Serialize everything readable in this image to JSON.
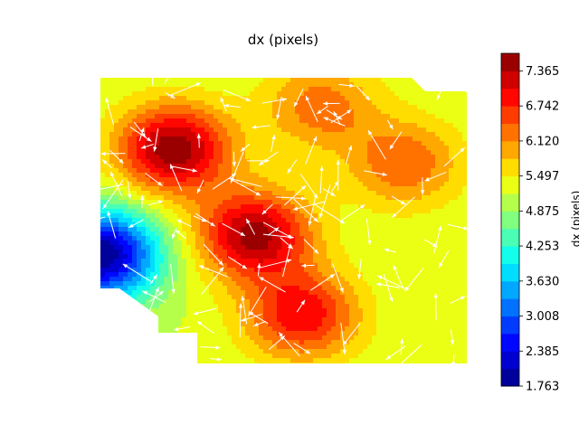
{
  "chart_data": {
    "type": "heatmap",
    "title": "dx (pixels)",
    "xlabel": "",
    "ylabel": "",
    "colorbar": {
      "label": "dx (pixels)",
      "colormap": "jet",
      "range": [
        1.763,
        7.677
      ],
      "ticks": [
        "1.763",
        "2.385",
        "3.008",
        "3.630",
        "4.253",
        "4.875",
        "5.497",
        "6.120",
        "6.742",
        "7.365"
      ],
      "levels": 19
    },
    "axes_visible": false,
    "grid": false,
    "field": {
      "description": "filled contour of dx over image region with white quiver arrows overlay",
      "hotspots": [
        {
          "x": 0.2,
          "y": 0.25,
          "value": 7.6
        },
        {
          "x": 0.42,
          "y": 0.55,
          "value": 7.5
        },
        {
          "x": 0.55,
          "y": 0.83,
          "value": 7.0
        },
        {
          "x": 0.0,
          "y": 0.62,
          "value": 1.76
        },
        {
          "x": 0.83,
          "y": 0.3,
          "value": 6.4
        },
        {
          "x": 0.6,
          "y": 0.1,
          "value": 6.3
        }
      ],
      "background_value": 5.2
    },
    "quiver_color": "#ffffff"
  }
}
